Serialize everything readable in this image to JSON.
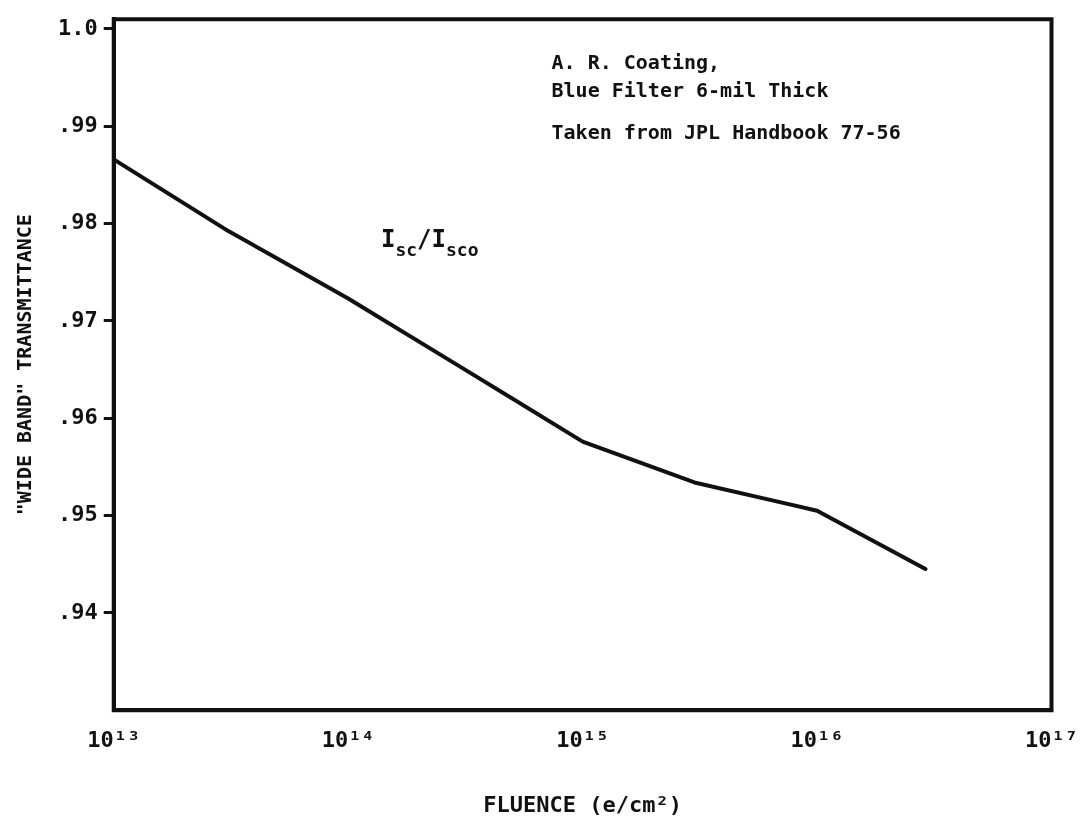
{
  "chart_data": {
    "type": "line",
    "xlabel": "FLUENCE (e/cm²)",
    "ylabel": "\"WIDE BAND\" TRANSMITTANCE",
    "x": [
      10000000000000.0,
      30000000000000.0,
      100000000000000.0,
      300000000000000.0,
      1000000000000000.0,
      3000000000000000.0,
      1e+16,
      2.9e+16
    ],
    "series": [
      {
        "color": "#111111",
        "values": [
          0.9866,
          0.9794,
          0.9723,
          0.9653,
          0.9576,
          0.9534,
          0.9505,
          0.9445
        ]
      }
    ],
    "xlim": [
      10000000000000.0,
      1e+17
    ],
    "ylim": [
      0.93,
      1.001
    ],
    "xticks": [
      {
        "value": 10000000000000.0,
        "label": "10¹³"
      },
      {
        "value": 100000000000000.0,
        "label": "10¹⁴"
      },
      {
        "value": 1000000000000000.0,
        "label": "10¹⁵"
      },
      {
        "value": 1e+16,
        "label": "10¹⁶"
      },
      {
        "value": 1e+17,
        "label": "10¹⁷"
      }
    ],
    "yticks": [
      {
        "value": 0.94,
        "label": ".94"
      },
      {
        "value": 0.95,
        "label": ".95"
      },
      {
        "value": 0.96,
        "label": ".96"
      },
      {
        "value": 0.97,
        "label": ".97"
      },
      {
        "value": 0.98,
        "label": ".98"
      },
      {
        "value": 0.99,
        "label": ".99"
      },
      {
        "value": 1,
        "label": "1.0"
      }
    ],
    "log": "x",
    "grid": false,
    "legend": false,
    "marker": "none",
    "line_style": "solid",
    "annotations": [
      "A. R. Coating,\nBlue Filter 6-mil Thick",
      "Taken from JPL Handbook 77-56",
      "I$_{sc}$/I$_{sco}$"
    ]
  }
}
